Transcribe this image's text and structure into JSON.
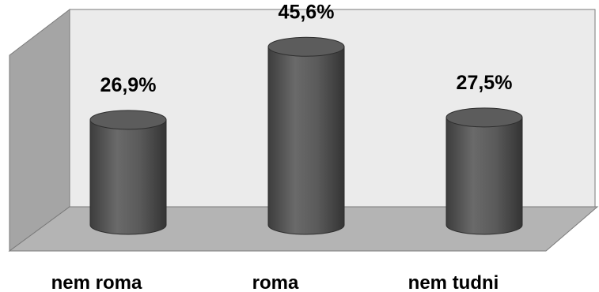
{
  "chart_data": {
    "type": "bar",
    "style": "3d-cylinder",
    "categories": [
      "nem roma",
      "roma",
      "nem tudni"
    ],
    "values": [
      26.9,
      45.6,
      27.5
    ],
    "value_labels": [
      "26,9%",
      "45,6%",
      "27,5%"
    ],
    "title": "",
    "xlabel": "",
    "ylabel": "",
    "ylim": [
      0,
      50
    ],
    "grid": false,
    "legend": "none",
    "colors": {
      "back_wall": "#ebebeb",
      "side_wall": "#a5a5a5",
      "floor": "#b4b4b4",
      "bar": "#555555",
      "bar_top": "#5c5c5c"
    }
  }
}
